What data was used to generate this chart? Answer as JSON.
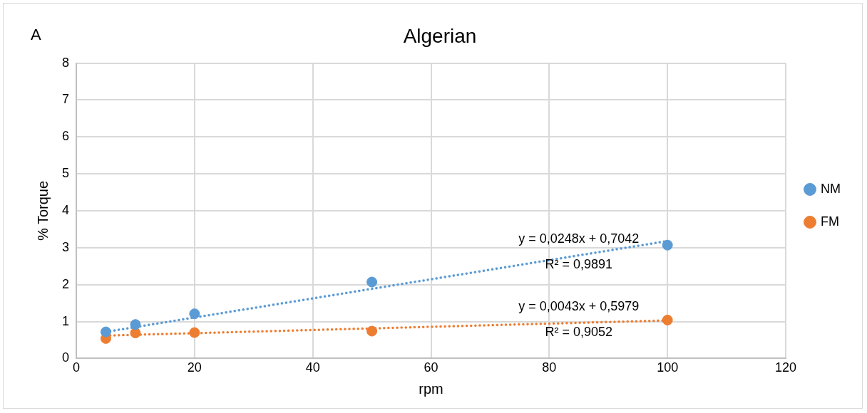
{
  "chart_data": {
    "type": "scatter",
    "title": "Algerian",
    "xlabel": "rpm",
    "ylabel": "% Torque",
    "x": [
      5,
      10,
      20,
      50,
      100
    ],
    "series": [
      {
        "name": "NM",
        "color": "#5b9bd5",
        "values": [
          0.72,
          0.92,
          1.21,
          2.07,
          3.07
        ]
      },
      {
        "name": "FM",
        "color": "#ed7d31",
        "values": [
          0.54,
          0.69,
          0.7,
          0.74,
          1.04
        ]
      },
      {
        "type": "line",
        "color": "#5b9bd5",
        "line_style": "dotted",
        "marker": "none",
        "values": [
          0.72,
          null,
          null,
          null,
          3.18
        ]
      },
      {
        "type": "line",
        "color": "#ed7d31",
        "line_style": "dotted",
        "marker": "none",
        "values": [
          0.62,
          null,
          null,
          null,
          1.03
        ]
      }
    ],
    "xlim": [
      0,
      120
    ],
    "xticks": [
      0,
      20,
      40,
      60,
      80,
      100,
      120
    ],
    "ylim": [
      0,
      8
    ],
    "yticks": [
      0,
      1,
      2,
      3,
      4,
      5,
      6,
      7,
      8
    ],
    "grid": true,
    "legend": "right",
    "marker": "circle",
    "annotations": [
      "A",
      {
        "text": "y = 0,0248x + 0,7042\nR² = 0,9891",
        "x": 85,
        "y": 2.812
      },
      {
        "text": "y = 0,0043x + 0,5979\nR² = 0,9052",
        "x": 85,
        "y": 0.9634
      }
    ]
  }
}
